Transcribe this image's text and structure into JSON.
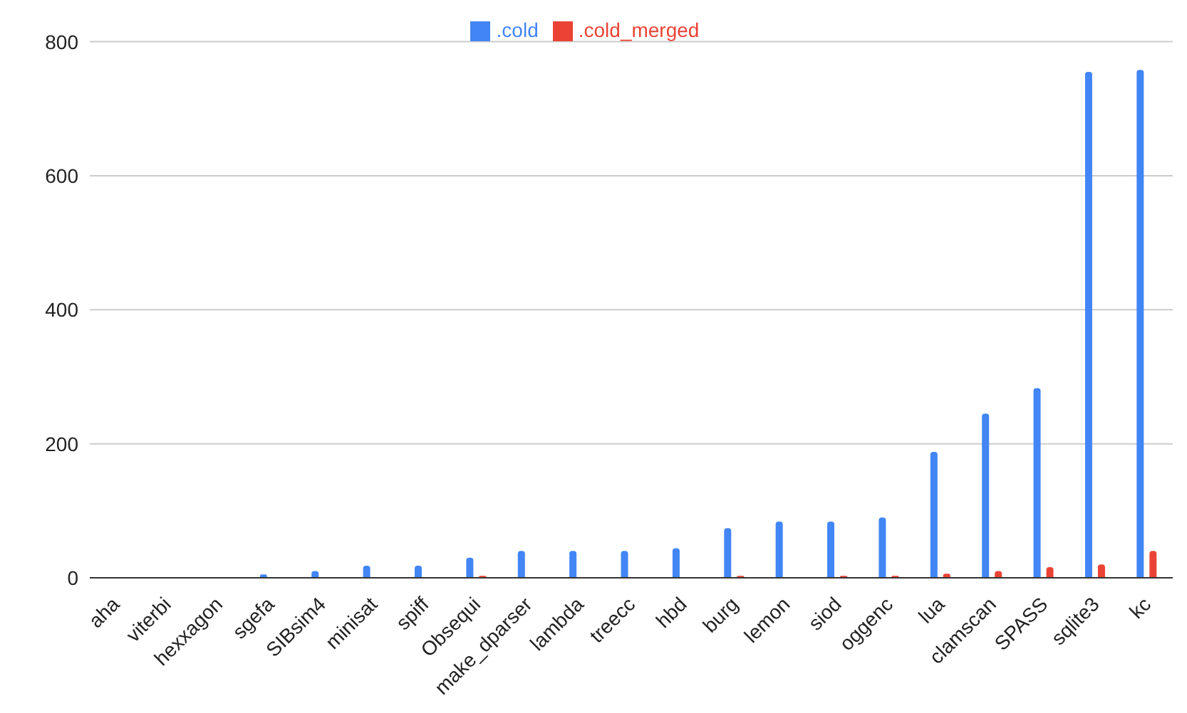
{
  "chart_data": {
    "type": "bar",
    "categories": [
      "aha",
      "viterbi",
      "hexxagon",
      "sgefa",
      "SIBsim4",
      "minisat",
      "spiff",
      "Obsequi",
      "make_dparser",
      "lambda",
      "treecc",
      "hbd",
      "burg",
      "lemon",
      "siod",
      "oggenc",
      "lua",
      "clamscan",
      "SPASS",
      "sqlite3",
      "kc"
    ],
    "series": [
      {
        "name": ".cold",
        "color": "#4285f4",
        "values": [
          0,
          0,
          0,
          5,
          10,
          18,
          18,
          30,
          40,
          40,
          40,
          44,
          74,
          84,
          84,
          90,
          188,
          245,
          283,
          755,
          758
        ]
      },
      {
        "name": ".cold_merged",
        "color": "#ea4335",
        "values": [
          0,
          0,
          0,
          0,
          0,
          0,
          0,
          3,
          0,
          0,
          0,
          0,
          3,
          0,
          3,
          3,
          6,
          10,
          16,
          20,
          40
        ]
      }
    ],
    "ylim": [
      0,
      800
    ],
    "yticks": [
      0,
      200,
      400,
      600,
      800
    ],
    "grid": "y",
    "legend": "top"
  }
}
